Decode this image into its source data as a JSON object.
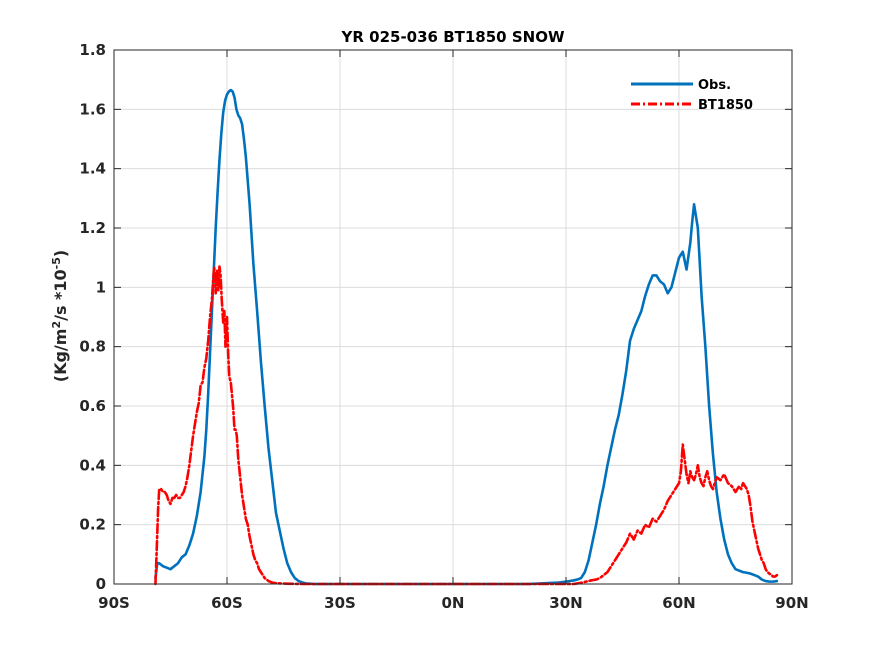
{
  "chart_data": {
    "type": "line",
    "title": "YR 025-036 BT1850 SNOW",
    "xlabel": "",
    "ylabel": "(Kg/m2/s *10-5)",
    "ylabel_parts": {
      "base1": "(Kg/m",
      "sup1": "2",
      "base2": "/s *10",
      "sup2": "-5",
      "base3": ")"
    },
    "xlim": [
      -90,
      90
    ],
    "ylim": [
      0,
      1.8
    ],
    "xticks": [
      -90,
      -60,
      -30,
      0,
      30,
      60,
      90
    ],
    "xtick_labels": [
      "90S",
      "60S",
      "30S",
      "0N",
      "30N",
      "60N",
      "90N"
    ],
    "yticks": [
      0,
      0.2,
      0.4,
      0.6,
      0.8,
      1,
      1.2,
      1.4,
      1.6,
      1.8
    ],
    "ytick_labels": [
      "0",
      "0.2",
      "0.4",
      "0.6",
      "0.8",
      "1",
      "1.2",
      "1.4",
      "1.6",
      "1.8"
    ],
    "grid": true,
    "legend_position": "top-right",
    "series": [
      {
        "name": "Obs.",
        "color": "#0072BD",
        "style": "solid",
        "x": [
          -79,
          -78.5,
          -78,
          -77,
          -76,
          -75,
          -74,
          -73,
          -72,
          -71,
          -70,
          -69,
          -68,
          -67,
          -66,
          -65.5,
          -65,
          -64.5,
          -64,
          -63.5,
          -63,
          -62.5,
          -62,
          -61.5,
          -61,
          -60.5,
          -60,
          -59.5,
          -59,
          -58.5,
          -58,
          -57.5,
          -57,
          -56.5,
          -56,
          -55.5,
          -55,
          -54.5,
          -54,
          -53.5,
          -53,
          -52,
          -51,
          -50,
          -49,
          -48,
          -47,
          -46,
          -45,
          -44,
          -43,
          -42,
          -41,
          -40,
          -39,
          -38,
          -37,
          -36,
          -30,
          -20,
          -10,
          0,
          10,
          20,
          28,
          30,
          31,
          32,
          33,
          34,
          35,
          36,
          37,
          38,
          39,
          40,
          41,
          42,
          43,
          44,
          45,
          46,
          47,
          48,
          49,
          50,
          51,
          52,
          53,
          54,
          55,
          56,
          57,
          58,
          59,
          60,
          61,
          62,
          63,
          63.5,
          64,
          65,
          66,
          67,
          68,
          69,
          70,
          71,
          72,
          73,
          74,
          75,
          76,
          77,
          78,
          79,
          80,
          81,
          82,
          83,
          84,
          85,
          86
        ],
        "values": [
          0.02,
          0.07,
          0.07,
          0.06,
          0.055,
          0.05,
          0.06,
          0.07,
          0.09,
          0.1,
          0.13,
          0.17,
          0.23,
          0.31,
          0.43,
          0.52,
          0.64,
          0.78,
          0.92,
          1.06,
          1.2,
          1.32,
          1.43,
          1.52,
          1.59,
          1.63,
          1.65,
          1.66,
          1.665,
          1.66,
          1.64,
          1.6,
          1.58,
          1.57,
          1.55,
          1.5,
          1.44,
          1.36,
          1.28,
          1.18,
          1.08,
          0.92,
          0.75,
          0.6,
          0.46,
          0.35,
          0.24,
          0.18,
          0.12,
          0.07,
          0.04,
          0.02,
          0.01,
          0.005,
          0.002,
          0.001,
          0,
          0,
          0,
          0,
          0,
          0,
          0,
          0,
          0.005,
          0.008,
          0.01,
          0.012,
          0.015,
          0.02,
          0.04,
          0.08,
          0.14,
          0.2,
          0.27,
          0.33,
          0.4,
          0.46,
          0.52,
          0.57,
          0.64,
          0.72,
          0.82,
          0.86,
          0.89,
          0.92,
          0.97,
          1.01,
          1.04,
          1.04,
          1.02,
          1.01,
          0.98,
          1,
          1.05,
          1.1,
          1.12,
          1.06,
          1.15,
          1.22,
          1.28,
          1.2,
          0.97,
          0.8,
          0.6,
          0.44,
          0.31,
          0.22,
          0.15,
          0.1,
          0.07,
          0.05,
          0.045,
          0.04,
          0.038,
          0.035,
          0.03,
          0.025,
          0.015,
          0.01,
          0.008,
          0.008,
          0.01
        ]
      },
      {
        "name": "BT1850",
        "color": "#FF0000",
        "style": "dashdot",
        "x": [
          -79,
          -78.7,
          -78.3,
          -78,
          -77.5,
          -77,
          -76.5,
          -76,
          -75.5,
          -75,
          -74.5,
          -74,
          -73.5,
          -73,
          -72.5,
          -72,
          -71.5,
          -71,
          -70.5,
          -70,
          -69.5,
          -69,
          -68.5,
          -68,
          -67.5,
          -67,
          -66.5,
          -66,
          -65.5,
          -65,
          -64.5,
          -64,
          -63.7,
          -63.4,
          -63,
          -62.6,
          -62.3,
          -62,
          -61.7,
          -61.4,
          -61,
          -60.7,
          -60.4,
          -60,
          -59.7,
          -59.4,
          -59,
          -58.7,
          -58.4,
          -58,
          -57.7,
          -57.4,
          -57,
          -56.5,
          -56,
          -55.5,
          -55,
          -54.5,
          -54,
          -53.5,
          -53,
          -52.5,
          -52,
          -51.5,
          -51,
          -50.5,
          -50,
          -49.5,
          -49,
          -48,
          -47,
          -46,
          -44,
          -40,
          -30,
          -20,
          -10,
          0,
          10,
          20,
          30,
          32,
          33,
          34,
          35,
          36,
          37,
          38,
          39,
          40,
          41,
          42,
          43,
          44,
          45,
          46,
          47,
          48,
          49,
          50,
          51,
          52,
          53,
          54,
          55,
          56,
          57,
          58,
          59,
          59.5,
          60,
          60.5,
          61,
          61.5,
          62,
          62.5,
          63,
          63.5,
          64,
          64.5,
          65,
          65.5,
          66,
          66.5,
          67,
          67.5,
          68,
          68.5,
          69,
          69.5,
          70,
          71,
          72,
          73,
          74,
          75,
          75.5,
          76,
          76.5,
          77,
          77.5,
          78,
          78.5,
          79,
          79.5,
          80,
          80.5,
          81,
          81.5,
          82,
          82.5,
          83,
          83.5,
          84,
          84.5,
          85,
          85.5,
          86
        ],
        "values": [
          0,
          0.1,
          0.25,
          0.32,
          0.32,
          0.31,
          0.31,
          0.3,
          0.28,
          0.27,
          0.29,
          0.29,
          0.3,
          0.29,
          0.29,
          0.3,
          0.31,
          0.33,
          0.36,
          0.4,
          0.45,
          0.5,
          0.54,
          0.58,
          0.61,
          0.67,
          0.68,
          0.73,
          0.76,
          0.82,
          0.9,
          0.96,
          1.02,
          1.07,
          0.98,
          1.06,
          0.99,
          1.07,
          1.04,
          0.96,
          0.88,
          0.92,
          0.8,
          0.9,
          0.78,
          0.7,
          0.68,
          0.64,
          0.6,
          0.52,
          0.52,
          0.5,
          0.42,
          0.36,
          0.3,
          0.26,
          0.22,
          0.2,
          0.16,
          0.13,
          0.1,
          0.08,
          0.07,
          0.05,
          0.04,
          0.03,
          0.02,
          0.015,
          0.01,
          0.005,
          0.003,
          0.002,
          0.001,
          0,
          0,
          0,
          0,
          0,
          0,
          0,
          0,
          0,
          0.002,
          0.004,
          0.007,
          0.01,
          0.013,
          0.015,
          0.02,
          0.03,
          0.04,
          0.06,
          0.08,
          0.1,
          0.12,
          0.14,
          0.17,
          0.15,
          0.18,
          0.17,
          0.2,
          0.19,
          0.22,
          0.21,
          0.23,
          0.25,
          0.28,
          0.3,
          0.32,
          0.33,
          0.34,
          0.38,
          0.47,
          0.42,
          0.37,
          0.34,
          0.38,
          0.36,
          0.35,
          0.37,
          0.4,
          0.36,
          0.34,
          0.33,
          0.36,
          0.38,
          0.35,
          0.33,
          0.32,
          0.34,
          0.36,
          0.35,
          0.37,
          0.34,
          0.33,
          0.31,
          0.32,
          0.33,
          0.32,
          0.34,
          0.33,
          0.32,
          0.3,
          0.26,
          0.21,
          0.18,
          0.15,
          0.12,
          0.1,
          0.08,
          0.07,
          0.05,
          0.04,
          0.035,
          0.03,
          0.025,
          0.025,
          0.03
        ]
      }
    ]
  }
}
